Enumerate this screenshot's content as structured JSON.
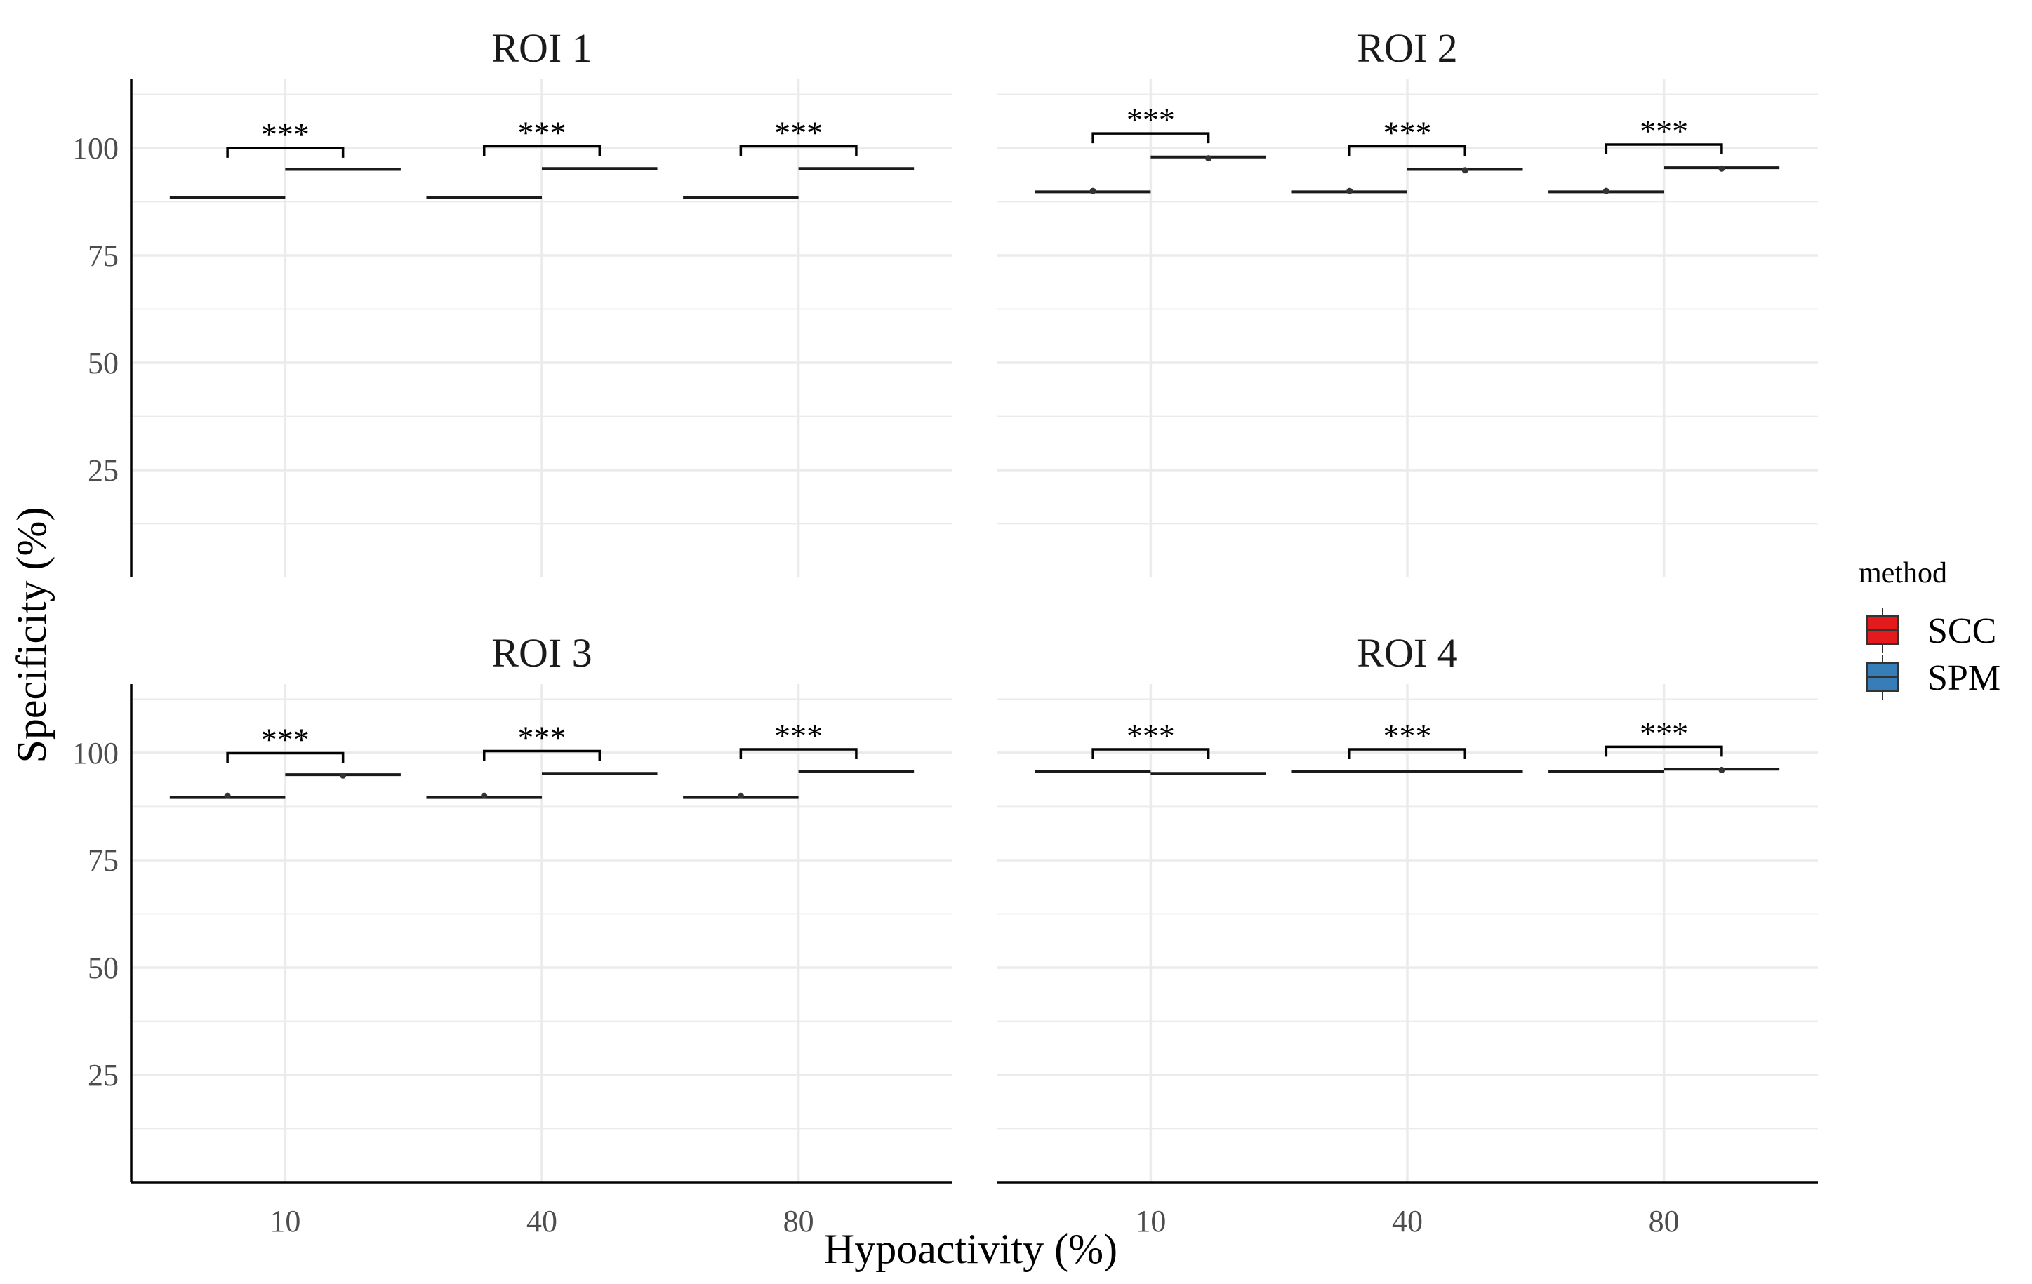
{
  "chart_data": {
    "type": "box",
    "xlabel": "Hypoactivity (%)",
    "ylabel": "Specificity (%)",
    "ylim": [
      0,
      116
    ],
    "yticks": [
      25,
      50,
      75,
      100
    ],
    "categories": [
      "10",
      "40",
      "80"
    ],
    "legend": {
      "title": "method",
      "position": "right",
      "entries": [
        {
          "name": "SCC",
          "color": "#e41a1c"
        },
        {
          "name": "SPM",
          "color": "#377eb8"
        }
      ]
    },
    "significance_label": "***",
    "panels": [
      {
        "title": "ROI 1",
        "series": [
          {
            "name": "SCC",
            "values": [
              88.4,
              88.4,
              88.4
            ],
            "outliers": [
              [],
              [],
              []
            ]
          },
          {
            "name": "SPM",
            "values": [
              95.0,
              95.2,
              95.2
            ],
            "outliers": [
              [],
              [],
              []
            ]
          }
        ],
        "brackets": [
          100.0,
          100.4,
          100.4
        ]
      },
      {
        "title": "ROI 2",
        "series": [
          {
            "name": "SCC",
            "values": [
              89.8,
              89.8,
              89.8
            ],
            "outliers": [
              [
                90.0
              ],
              [
                90.0
              ],
              [
                90.0
              ]
            ]
          },
          {
            "name": "SPM",
            "values": [
              97.9,
              95.0,
              95.4
            ],
            "outliers": [
              [
                97.6
              ],
              [
                94.8
              ],
              [
                95.2
              ]
            ]
          }
        ],
        "brackets": [
          103.4,
          100.4,
          100.8
        ]
      },
      {
        "title": "ROI 3",
        "series": [
          {
            "name": "SCC",
            "values": [
              89.6,
              89.6,
              89.6
            ],
            "outliers": [
              [
                90.0
              ],
              [
                90.0
              ],
              [
                90.0
              ]
            ]
          },
          {
            "name": "SPM",
            "values": [
              94.9,
              95.2,
              95.7
            ],
            "outliers": [
              [
                94.7
              ],
              [],
              []
            ]
          }
        ],
        "brackets": [
          99.9,
          100.4,
          100.8
        ]
      },
      {
        "title": "ROI 4",
        "series": [
          {
            "name": "SCC",
            "values": [
              95.6,
              95.6,
              95.6
            ],
            "outliers": [
              [],
              [],
              []
            ]
          },
          {
            "name": "SPM",
            "values": [
              95.2,
              95.6,
              96.2
            ],
            "outliers": [
              [],
              [],
              [
                96.0
              ]
            ]
          }
        ],
        "brackets": [
          100.8,
          100.8,
          101.4
        ]
      }
    ]
  }
}
